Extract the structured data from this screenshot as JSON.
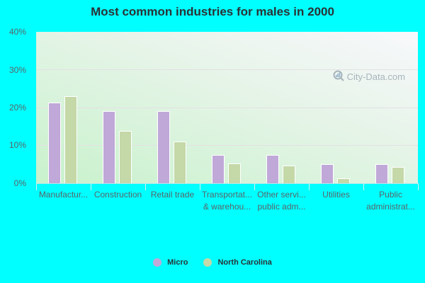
{
  "chart_data": {
    "type": "bar",
    "title": "Most common industries for males in 2000",
    "xlabel": "",
    "ylabel": "",
    "ylim": [
      0,
      40
    ],
    "yticks": [
      "0%",
      "10%",
      "20%",
      "30%",
      "40%"
    ],
    "grid": true,
    "legend_position": "bottom",
    "categories": [
      "Manufactur...",
      "Construction",
      "Retail trade",
      "Transportat... & warehou...",
      "Other servi... public adm...",
      "Utilities",
      "Public administrat..."
    ],
    "series": [
      {
        "name": "Micro",
        "color": "#c0a8d8",
        "values": [
          21.4,
          19.0,
          19.0,
          7.4,
          7.4,
          5.0,
          5.0
        ]
      },
      {
        "name": "North Carolina",
        "color": "#c4d8a8",
        "values": [
          23.0,
          13.8,
          11.0,
          5.2,
          4.6,
          1.4,
          4.3
        ]
      }
    ]
  },
  "labels": {
    "title": "Most common industries for males in 2000",
    "watermark": "City-Data.com",
    "yticks": [
      "40%",
      "30%",
      "20%",
      "10%",
      "0%"
    ],
    "xlabels": [
      [
        "Manufactur..."
      ],
      [
        "Construction"
      ],
      [
        "Retail trade"
      ],
      [
        "Transportat...",
        "& warehou..."
      ],
      [
        "Other servi...",
        "public adm..."
      ],
      [
        "Utilities"
      ],
      [
        "Public",
        "administrat..."
      ]
    ],
    "legend": [
      "Micro",
      "North Carolina"
    ]
  }
}
